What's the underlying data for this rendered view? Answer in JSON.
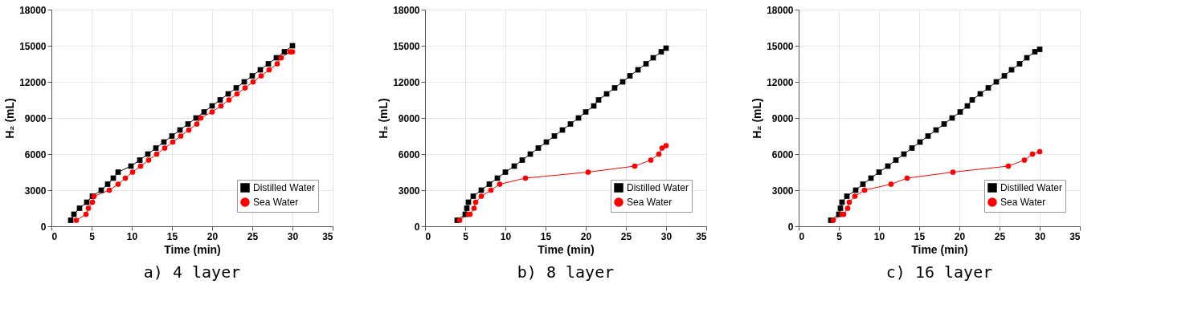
{
  "chart_data": [
    {
      "type": "line",
      "title": "a) 4 layer",
      "xlabel": "Time (min)",
      "ylabel": "H₂ (mL)",
      "xlim": [
        0,
        35
      ],
      "xticks": [
        0,
        5,
        10,
        15,
        20,
        25,
        30,
        35
      ],
      "ylim": [
        0,
        18000
      ],
      "yticks": [
        0,
        3000,
        6000,
        9000,
        12000,
        15000,
        18000
      ],
      "grid": true,
      "legend": "bottom right",
      "line_style": "solid",
      "series": [
        {
          "name": "Distilled Water",
          "color": "#000000",
          "marker": "square",
          "x": [
            2.4,
            2.8,
            3.5,
            4.4,
            5.1,
            6.2,
            7,
            7.7,
            8.3,
            9.9,
            11,
            12,
            13,
            14,
            15,
            16,
            17,
            18,
            19,
            20,
            21,
            22,
            23,
            24,
            25,
            26,
            27,
            28,
            29,
            30
          ],
          "values": [
            500,
            1000,
            1500,
            2000,
            2500,
            3000,
            3500,
            4000,
            4500,
            5000,
            5500,
            6000,
            6500,
            7000,
            7500,
            8000,
            8500,
            9000,
            9500,
            10000,
            10500,
            11000,
            11500,
            12000,
            12500,
            13000,
            13500,
            14000,
            14500,
            15000
          ]
        },
        {
          "name": "Sea Water",
          "color": "#ff0000",
          "marker": "circle",
          "x": [
            3.1,
            4.3,
            4.6,
            5.1,
            5.3,
            7.2,
            8.3,
            9.2,
            10.1,
            11.1,
            12.1,
            13.1,
            14.1,
            15.1,
            16.1,
            17.1,
            18.1,
            18.6,
            20,
            21.1,
            22.1,
            23.1,
            24.1,
            25.1,
            26.1,
            27.1,
            28.1,
            28.6,
            29.7,
            30
          ],
          "values": [
            500,
            1000,
            1500,
            2000,
            2500,
            3000,
            3500,
            4000,
            4500,
            5000,
            5500,
            6000,
            6500,
            7000,
            7500,
            8000,
            8500,
            9000,
            9500,
            10000,
            10500,
            11000,
            11500,
            12000,
            12500,
            13000,
            13500,
            14000,
            14500,
            14500
          ]
        }
      ]
    },
    {
      "type": "line",
      "title": "b) 8 layer",
      "xlabel": "Time (min)",
      "ylabel": "H₂ (mL)",
      "xlim": [
        0,
        35
      ],
      "xticks": [
        0,
        5,
        10,
        15,
        20,
        25,
        30,
        35
      ],
      "ylim": [
        0,
        18000
      ],
      "yticks": [
        0,
        3000,
        6000,
        9000,
        12000,
        15000,
        18000
      ],
      "grid": true,
      "legend": "bottom right",
      "line_style": "solid",
      "series": [
        {
          "name": "Distilled Water",
          "color": "#000000",
          "marker": "square",
          "x": [
            4.0,
            5.0,
            5.2,
            5.4,
            6,
            7,
            8,
            9,
            10,
            11.1,
            12.1,
            13.1,
            14.1,
            15.1,
            16.1,
            17.1,
            18.1,
            19.1,
            20,
            21,
            21.6,
            22.6,
            23.6,
            24.6,
            25.5,
            26.5,
            27.5,
            28.4,
            29.4,
            30
          ],
          "values": [
            500,
            1000,
            1500,
            2000,
            2500,
            3000,
            3500,
            4000,
            4500,
            5000,
            5500,
            6000,
            6500,
            7000,
            7500,
            8000,
            8500,
            9000,
            9500,
            10000,
            10500,
            11000,
            11500,
            12000,
            12500,
            13000,
            13500,
            14000,
            14500,
            14800
          ]
        },
        {
          "name": "Sea Water",
          "color": "#ff0000",
          "marker": "circle",
          "x": [
            4.3,
            5.4,
            5.6,
            6.1,
            6.3,
            7,
            8.2,
            9.3,
            12.5,
            20.3,
            26.1,
            28.1,
            29.1,
            29.5,
            30
          ],
          "values": [
            500,
            1000,
            1000,
            1500,
            2000,
            2500,
            3000,
            3500,
            4000,
            4500,
            5000,
            5500,
            6000,
            6500,
            6700
          ]
        }
      ]
    },
    {
      "type": "line",
      "title": "c) 16 layer",
      "xlabel": "Time (min)",
      "ylabel": "H₂ (mL)",
      "xlim": [
        0,
        35
      ],
      "xticks": [
        0,
        5,
        10,
        15,
        20,
        25,
        30,
        35
      ],
      "ylim": [
        0,
        18000
      ],
      "yticks": [
        0,
        3000,
        6000,
        9000,
        12000,
        15000,
        18000
      ],
      "grid": true,
      "legend": "bottom right",
      "line_style": "solid",
      "series": [
        {
          "name": "Distilled Water",
          "color": "#000000",
          "marker": "square",
          "x": [
            4.0,
            5.0,
            5.2,
            5.4,
            6,
            7.1,
            8,
            9,
            10,
            11.1,
            12.1,
            13.1,
            14.1,
            15.1,
            16.1,
            17.1,
            18.1,
            19.1,
            20.1,
            21,
            21.6,
            22.6,
            23.6,
            24.6,
            25.6,
            26.5,
            27.5,
            28.4,
            29.4,
            30
          ],
          "values": [
            500,
            1000,
            1500,
            2000,
            2500,
            3000,
            3500,
            4000,
            4500,
            5000,
            5500,
            6000,
            6500,
            7000,
            7500,
            8000,
            8500,
            9000,
            9500,
            10000,
            10500,
            11000,
            11500,
            12000,
            12500,
            13000,
            13500,
            14000,
            14500,
            14700
          ]
        },
        {
          "name": "Sea Water",
          "color": "#ff0000",
          "marker": "circle",
          "x": [
            4.3,
            5.4,
            5.6,
            6.1,
            6.3,
            7,
            8.2,
            11.5,
            13.5,
            19.2,
            26.1,
            28.1,
            29.1,
            30
          ],
          "values": [
            500,
            1000,
            1000,
            1500,
            2000,
            2500,
            3000,
            3500,
            4000,
            4500,
            5000,
            5500,
            6000,
            6200
          ]
        }
      ]
    }
  ]
}
